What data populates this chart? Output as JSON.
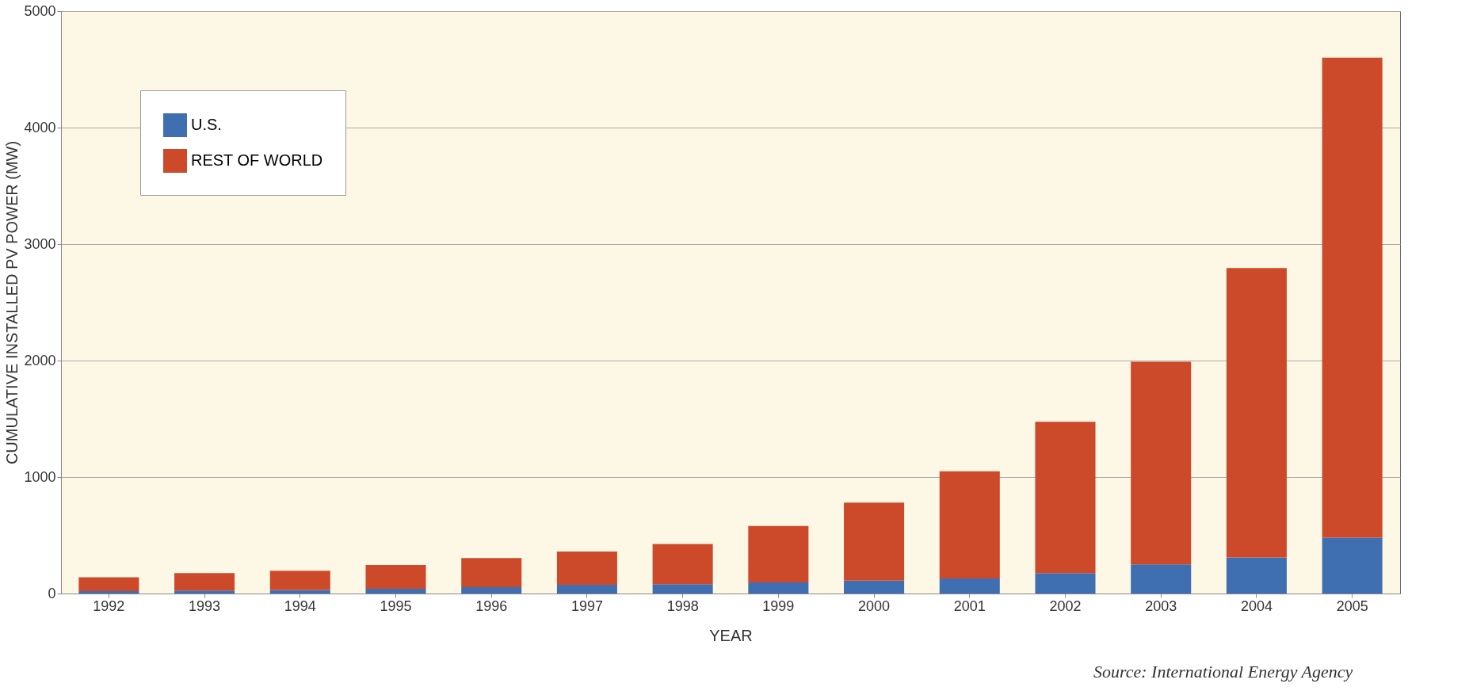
{
  "chart_data": {
    "type": "bar",
    "stacked": true,
    "xlabel": "YEAR",
    "ylabel": "CUMULATIVE INSTALLED PV POWER (MW)",
    "categories": [
      "1992",
      "1993",
      "1994",
      "1995",
      "1996",
      "1997",
      "1998",
      "1999",
      "2000",
      "2001",
      "2002",
      "2003",
      "2004",
      "2005"
    ],
    "series": [
      {
        "name": "U.S.",
        "color": "#3f6fb0",
        "values": [
          20,
          25,
          30,
          40,
          55,
          75,
          80,
          95,
          110,
          130,
          175,
          250,
          310,
          480
        ]
      },
      {
        "name": "REST OF WORLD",
        "color": "#cc4a2a",
        "values": [
          120,
          150,
          165,
          205,
          250,
          285,
          345,
          485,
          670,
          920,
          1300,
          1740,
          2485,
          4120
        ]
      }
    ],
    "ylim": [
      0,
      5000
    ],
    "yticks": [
      0,
      1000,
      2000,
      3000,
      4000,
      5000
    ],
    "grid": "y",
    "legend": "top left",
    "annotations": [
      "Source: International Energy Agency"
    ]
  }
}
